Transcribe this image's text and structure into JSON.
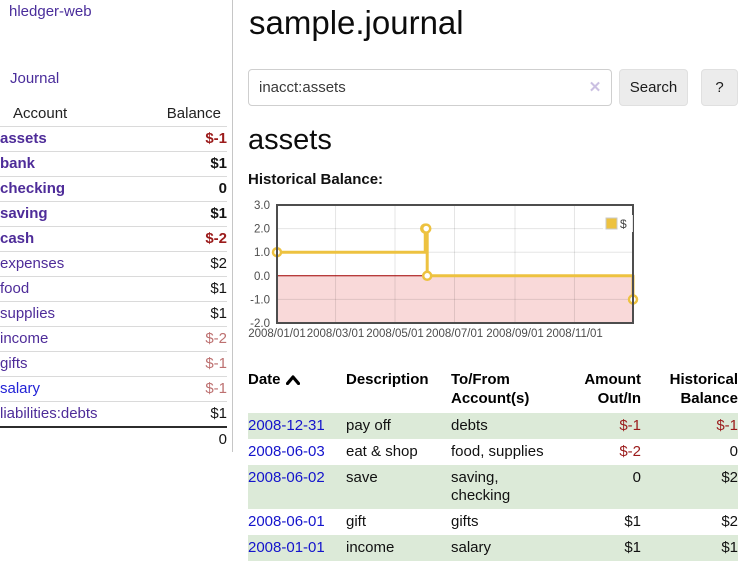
{
  "app": {
    "title": "hledger-web",
    "nav_journal": "Journal"
  },
  "sidebar": {
    "header": {
      "account": "Account",
      "balance": "Balance"
    },
    "accounts": [
      {
        "name": "assets",
        "balance": "$-1",
        "level": 0
      },
      {
        "name": "bank",
        "balance": "$1",
        "level": 1
      },
      {
        "name": "checking",
        "balance": "0",
        "level": 2
      },
      {
        "name": "saving",
        "balance": "$1",
        "level": 2
      },
      {
        "name": "cash",
        "balance": "$-2",
        "level": 1
      },
      {
        "name": "expenses",
        "balance": "$2",
        "level": 0
      },
      {
        "name": "food",
        "balance": "$1",
        "level": 1
      },
      {
        "name": "supplies",
        "balance": "$1",
        "level": 1
      },
      {
        "name": "income",
        "balance": "$-2",
        "level": 0
      },
      {
        "name": "gifts",
        "balance": "$-1",
        "level": 1
      },
      {
        "name": "salary",
        "balance": "$-1",
        "level": 1
      },
      {
        "name": "liabilities:debts",
        "balance": "$1",
        "level": 0
      }
    ],
    "total": "0"
  },
  "main": {
    "title": "sample.journal",
    "search": {
      "value": "inacct:assets",
      "clear_icon": "✕",
      "button": "Search",
      "help": "?"
    },
    "account_heading": "assets",
    "chart_label": "Historical Balance:"
  },
  "chart_data": {
    "type": "line",
    "title": "Historical Balance",
    "steps": true,
    "series": [
      {
        "name": "$",
        "color": "#edc240",
        "points": [
          [
            "2008-01-01",
            1
          ],
          [
            "2008-06-01",
            2
          ],
          [
            "2008-06-02",
            2
          ],
          [
            "2008-06-03",
            0
          ],
          [
            "2008-12-31",
            -1
          ]
        ]
      }
    ],
    "xlim": [
      "2008-01-01",
      "2008-12-31"
    ],
    "ylim": [
      -2,
      3
    ],
    "x_ticks": [
      "2008/01/01",
      "2008/03/01",
      "2008/05/01",
      "2008/07/01",
      "2008/09/01",
      "2008/11/01"
    ],
    "y_ticks": [
      -2.0,
      -1.0,
      0.0,
      1.0,
      2.0,
      3.0
    ],
    "legend": {
      "label": "$",
      "position": "top-right"
    },
    "grid": true,
    "annotations": {
      "negative_region_fill": "#f9d9d9",
      "zero_line_color": "#a40000"
    }
  },
  "register": {
    "columns": {
      "date": "Date",
      "description": "Description",
      "accounts": "To/From Account(s)",
      "amount": "Amount Out/In",
      "balance": "Historical Balance"
    },
    "rows": [
      {
        "date": "2008-12-31",
        "description": "pay off",
        "accounts": "debts",
        "amount": "$-1",
        "balance": "$-1"
      },
      {
        "date": "2008-06-03",
        "description": "eat & shop",
        "accounts": "food, supplies",
        "amount": "$-2",
        "balance": "0"
      },
      {
        "date": "2008-06-02",
        "description": "save",
        "accounts": "saving, checking",
        "amount": "0",
        "balance": "$2"
      },
      {
        "date": "2008-06-01",
        "description": "gift",
        "accounts": "gifts",
        "amount": "$1",
        "balance": "$2"
      },
      {
        "date": "2008-01-01",
        "description": "income",
        "accounts": "salary",
        "amount": "$1",
        "balance": "$1"
      }
    ]
  }
}
